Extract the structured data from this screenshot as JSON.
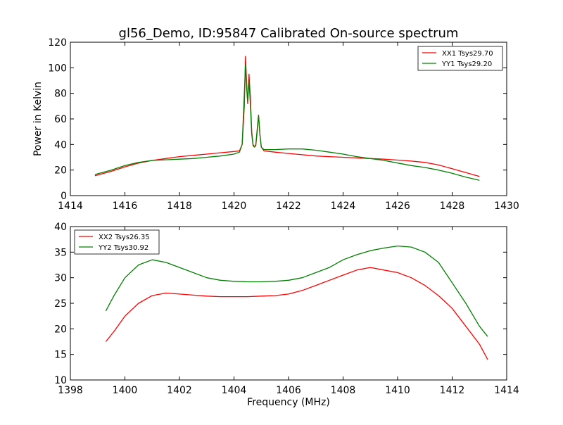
{
  "title": "gl56_Demo, ID:95847 Calibrated On-source spectrum",
  "shared_ylabel": "Power in Kelvin",
  "shared_xlabel": "Frequency (MHz)",
  "colors": {
    "red": "#ff0000",
    "green": "#008000"
  },
  "chart_data": [
    {
      "type": "line",
      "xlim": [
        1414,
        1430
      ],
      "ylim": [
        0,
        120
      ],
      "xticks": [
        1414,
        1416,
        1418,
        1420,
        1422,
        1424,
        1426,
        1428,
        1430
      ],
      "yticks": [
        0,
        20,
        40,
        60,
        80,
        100,
        120
      ],
      "grid": false,
      "legend_position": "top-right",
      "series": [
        {
          "name": "XX1 Tsys29.70",
          "color": "#ff0000",
          "points": [
            [
              1414.9,
              15.5
            ],
            [
              1415.5,
              19
            ],
            [
              1416,
              22.5
            ],
            [
              1416.5,
              25.5
            ],
            [
              1417,
              27.5
            ],
            [
              1417.5,
              29
            ],
            [
              1418,
              30.5
            ],
            [
              1418.5,
              31.5
            ],
            [
              1419,
              32.5
            ],
            [
              1419.5,
              33.5
            ],
            [
              1420,
              34.5
            ],
            [
              1420.2,
              35
            ],
            [
              1420.3,
              40
            ],
            [
              1420.38,
              70
            ],
            [
              1420.42,
              109
            ],
            [
              1420.46,
              90
            ],
            [
              1420.5,
              72
            ],
            [
              1420.55,
              95
            ],
            [
              1420.6,
              78
            ],
            [
              1420.65,
              50
            ],
            [
              1420.7,
              40
            ],
            [
              1420.75,
              38
            ],
            [
              1420.8,
              39
            ],
            [
              1420.86,
              52
            ],
            [
              1420.9,
              63
            ],
            [
              1420.95,
              48
            ],
            [
              1421,
              38
            ],
            [
              1421.1,
              35
            ],
            [
              1421.5,
              34
            ],
            [
              1422,
              33
            ],
            [
              1422.5,
              32
            ],
            [
              1423,
              31
            ],
            [
              1423.5,
              30.5
            ],
            [
              1424,
              30
            ],
            [
              1424.5,
              29.5
            ],
            [
              1425,
              29
            ],
            [
              1425.5,
              28.5
            ],
            [
              1426,
              27.8
            ],
            [
              1426.5,
              27
            ],
            [
              1427,
              26
            ],
            [
              1427.5,
              24
            ],
            [
              1428,
              21
            ],
            [
              1428.5,
              18
            ],
            [
              1429,
              15
            ]
          ]
        },
        {
          "name": "YY1 Tsys29.20",
          "color": "#008000",
          "points": [
            [
              1414.9,
              16.5
            ],
            [
              1415.5,
              20
            ],
            [
              1416,
              23.5
            ],
            [
              1416.5,
              26
            ],
            [
              1417,
              27.5
            ],
            [
              1417.5,
              28
            ],
            [
              1418,
              28.5
            ],
            [
              1418.5,
              29
            ],
            [
              1419,
              30
            ],
            [
              1419.5,
              31
            ],
            [
              1420,
              32.5
            ],
            [
              1420.2,
              34
            ],
            [
              1420.3,
              40
            ],
            [
              1420.38,
              80
            ],
            [
              1420.42,
              102
            ],
            [
              1420.46,
              85
            ],
            [
              1420.5,
              74
            ],
            [
              1420.55,
              90
            ],
            [
              1420.6,
              72
            ],
            [
              1420.65,
              48
            ],
            [
              1420.7,
              39
            ],
            [
              1420.75,
              38
            ],
            [
              1420.8,
              40
            ],
            [
              1420.86,
              54
            ],
            [
              1420.9,
              63
            ],
            [
              1420.95,
              48
            ],
            [
              1421,
              38
            ],
            [
              1421.1,
              36
            ],
            [
              1421.5,
              36
            ],
            [
              1422,
              36.5
            ],
            [
              1422.5,
              36.5
            ],
            [
              1423,
              35.5
            ],
            [
              1423.5,
              34
            ],
            [
              1424,
              32.5
            ],
            [
              1424.5,
              30.5
            ],
            [
              1425,
              29
            ],
            [
              1425.5,
              27.5
            ],
            [
              1426,
              25.5
            ],
            [
              1426.5,
              23.5
            ],
            [
              1427,
              22
            ],
            [
              1427.5,
              20
            ],
            [
              1428,
              17.5
            ],
            [
              1428.5,
              14.5
            ],
            [
              1429,
              12
            ]
          ]
        }
      ]
    },
    {
      "type": "line",
      "xlim": [
        1398,
        1414
      ],
      "ylim": [
        10,
        40
      ],
      "xticks": [
        1398,
        1400,
        1402,
        1404,
        1406,
        1408,
        1410,
        1412,
        1414
      ],
      "yticks": [
        10,
        15,
        20,
        25,
        30,
        35,
        40
      ],
      "grid": false,
      "legend_position": "top-left",
      "series": [
        {
          "name": "XX2 Tsys26.35",
          "color": "#ff0000",
          "points": [
            [
              1399.3,
              17.5
            ],
            [
              1399.6,
              19.5
            ],
            [
              1400,
              22.5
            ],
            [
              1400.5,
              25
            ],
            [
              1401,
              26.5
            ],
            [
              1401.5,
              27
            ],
            [
              1402,
              26.8
            ],
            [
              1402.5,
              26.6
            ],
            [
              1403,
              26.4
            ],
            [
              1403.5,
              26.3
            ],
            [
              1404,
              26.3
            ],
            [
              1404.5,
              26.3
            ],
            [
              1405,
              26.4
            ],
            [
              1405.5,
              26.5
            ],
            [
              1406,
              26.8
            ],
            [
              1406.5,
              27.5
            ],
            [
              1407,
              28.5
            ],
            [
              1407.5,
              29.5
            ],
            [
              1408,
              30.5
            ],
            [
              1408.5,
              31.5
            ],
            [
              1409,
              32
            ],
            [
              1409.5,
              31.5
            ],
            [
              1410,
              31
            ],
            [
              1410.5,
              30
            ],
            [
              1411,
              28.5
            ],
            [
              1411.5,
              26.5
            ],
            [
              1412,
              24
            ],
            [
              1412.5,
              20.5
            ],
            [
              1413,
              17
            ],
            [
              1413.3,
              14
            ]
          ]
        },
        {
          "name": "YY2 Tsys30.92",
          "color": "#008000",
          "points": [
            [
              1399.3,
              23.5
            ],
            [
              1399.6,
              26.5
            ],
            [
              1400,
              30
            ],
            [
              1400.5,
              32.5
            ],
            [
              1401,
              33.5
            ],
            [
              1401.5,
              33
            ],
            [
              1402,
              32
            ],
            [
              1402.5,
              31
            ],
            [
              1403,
              30
            ],
            [
              1403.5,
              29.5
            ],
            [
              1404,
              29.3
            ],
            [
              1404.5,
              29.2
            ],
            [
              1405,
              29.2
            ],
            [
              1405.5,
              29.3
            ],
            [
              1406,
              29.5
            ],
            [
              1406.5,
              30
            ],
            [
              1407,
              31
            ],
            [
              1407.5,
              32
            ],
            [
              1408,
              33.5
            ],
            [
              1408.5,
              34.5
            ],
            [
              1409,
              35.3
            ],
            [
              1409.5,
              35.8
            ],
            [
              1410,
              36.2
            ],
            [
              1410.5,
              36
            ],
            [
              1411,
              35
            ],
            [
              1411.5,
              33
            ],
            [
              1412,
              29
            ],
            [
              1412.5,
              25
            ],
            [
              1413,
              20.5
            ],
            [
              1413.3,
              18.5
            ]
          ]
        }
      ]
    }
  ]
}
